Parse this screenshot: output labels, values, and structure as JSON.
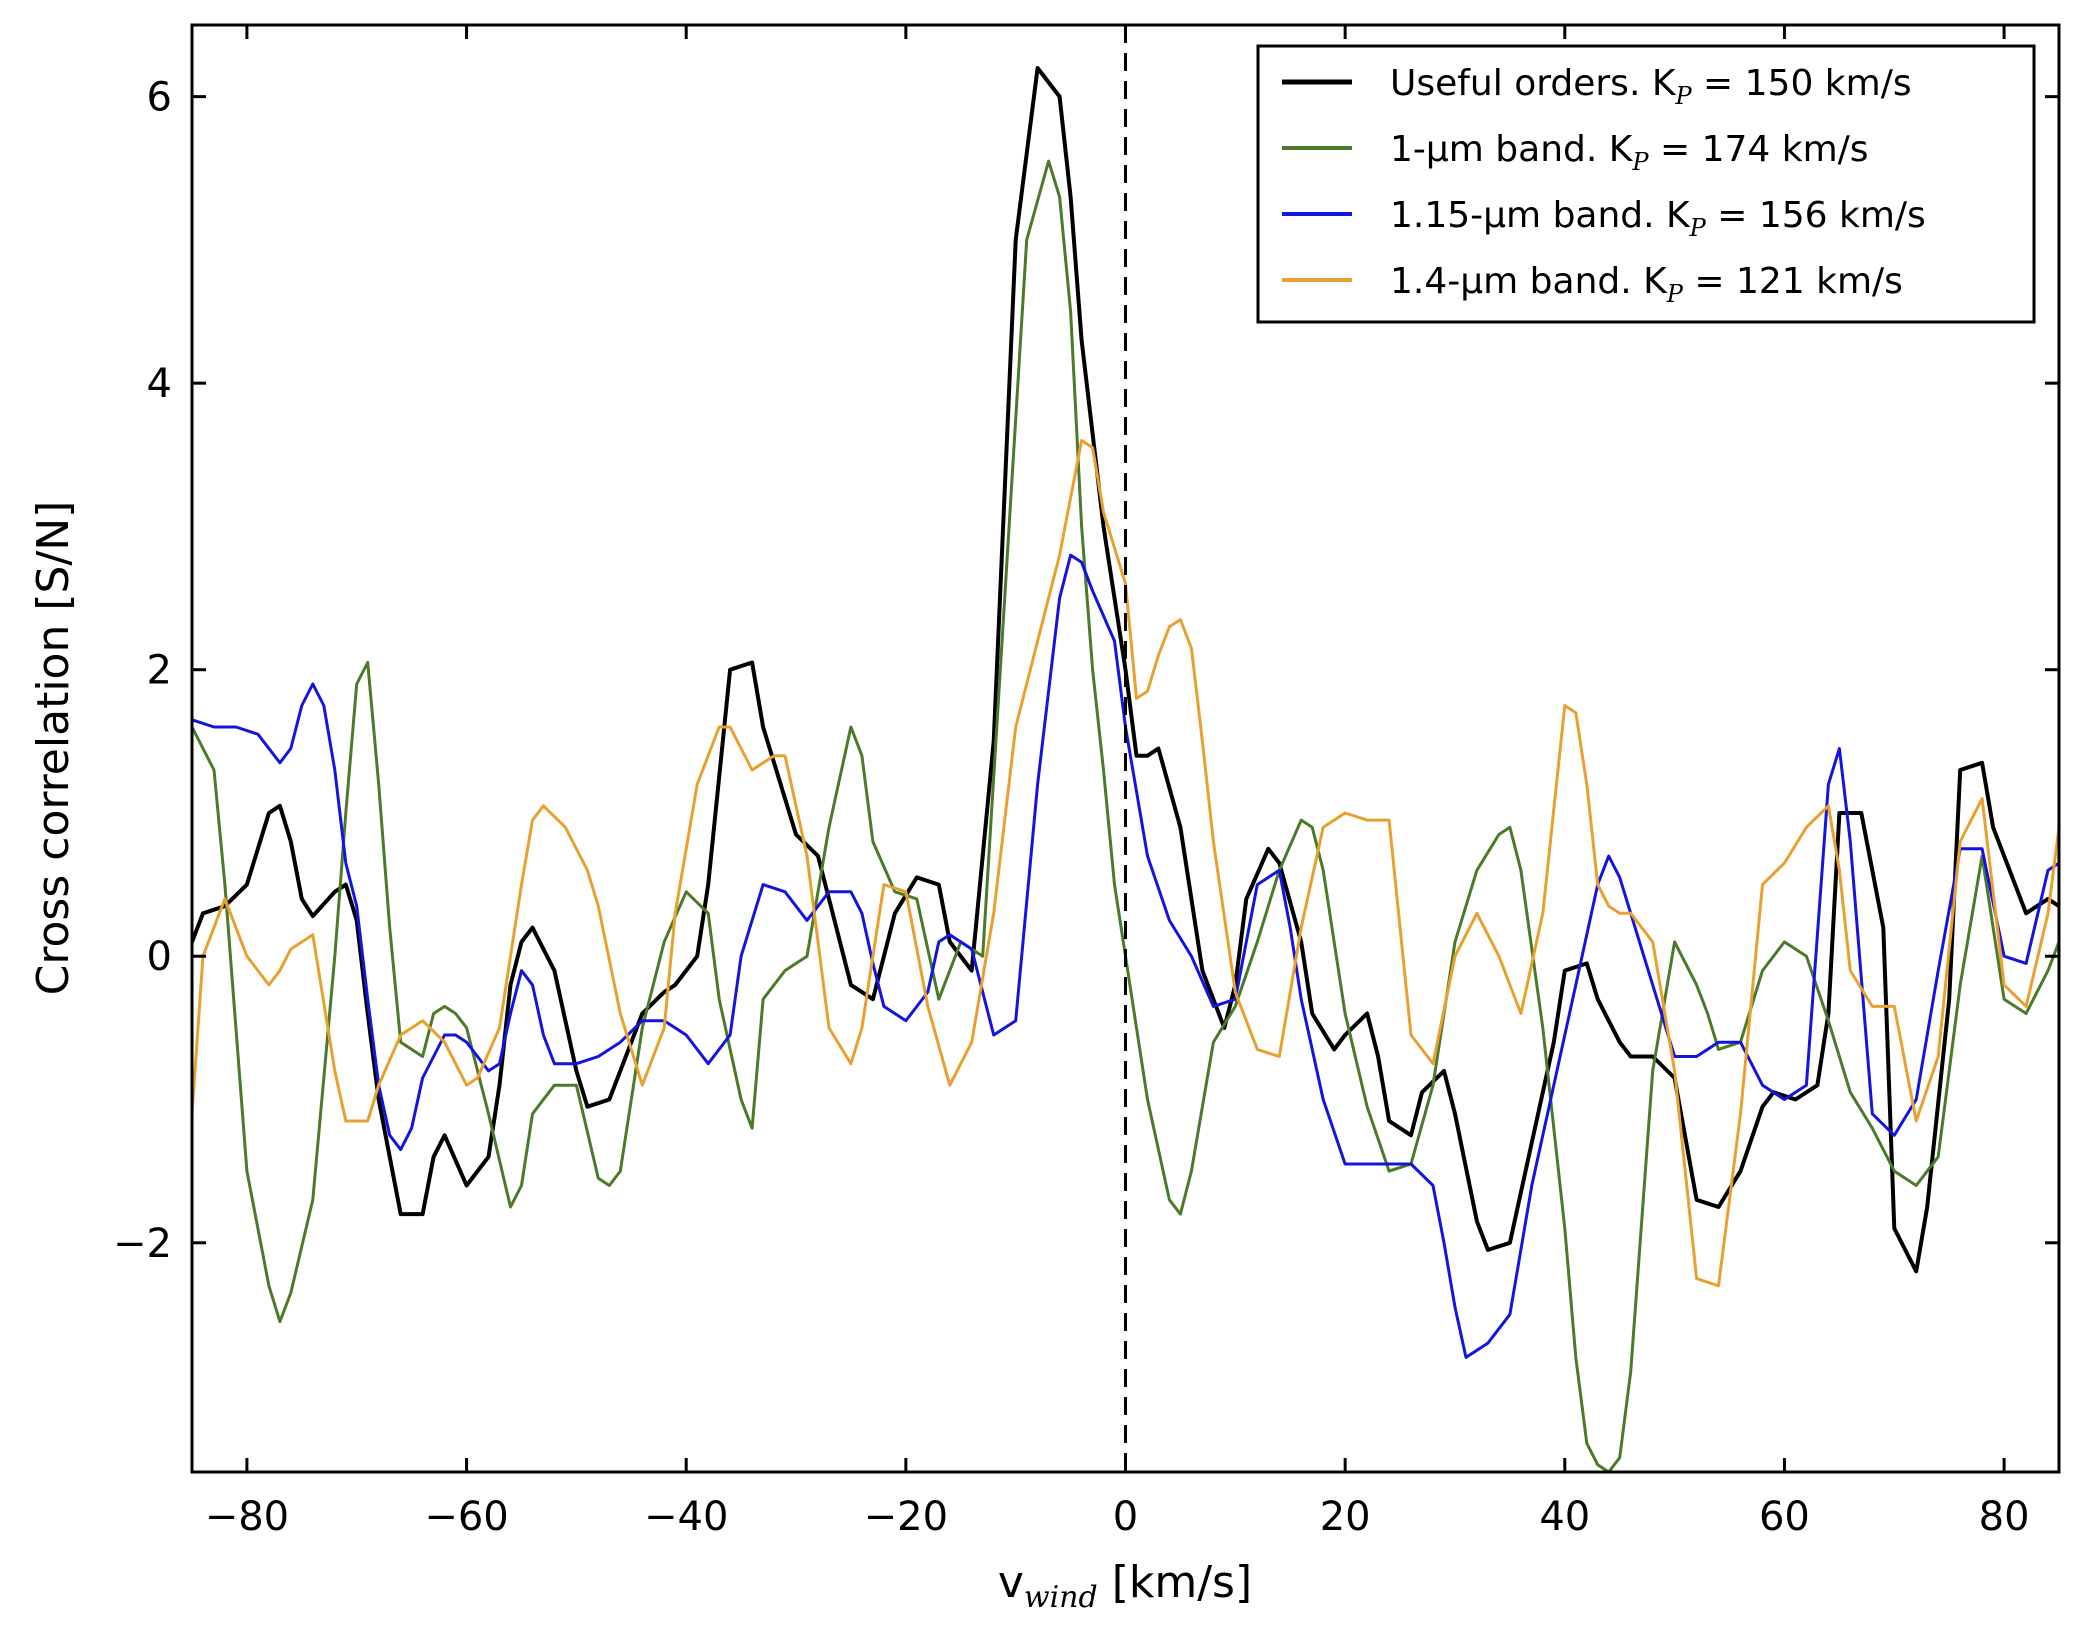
{
  "chart_data": {
    "type": "line",
    "title": "",
    "xlabel": "v",
    "xlabel_sub": "wind",
    "xlabel_unit": " [km/s]",
    "ylabel": "Cross correlation [S/N]",
    "xlim": [
      -85,
      85
    ],
    "ylim": [
      -3.6,
      6.5
    ],
    "xticks": [
      -80,
      -60,
      -40,
      -20,
      0,
      20,
      40,
      60,
      80
    ],
    "xtick_labels": [
      "−80",
      "−60",
      "−40",
      "−20",
      "0",
      "20",
      "40",
      "60",
      "80"
    ],
    "yticks": [
      -2,
      0,
      2,
      4,
      6
    ],
    "ytick_labels": [
      "−2",
      "0",
      "2",
      "4",
      "6"
    ],
    "grid": false,
    "legend_position": "top-right",
    "vline": {
      "x": 0,
      "style": "dashed"
    },
    "series": [
      {
        "name_main": "Useful orders. K",
        "name_sub": "P",
        "name_rest": " = 150 km/s",
        "color": "#000000",
        "width": 4,
        "x": [
          -85,
          -84,
          -82,
          -80,
          -78,
          -77,
          -76,
          -75,
          -74,
          -72,
          -71,
          -70,
          -69,
          -68,
          -66,
          -64,
          -63,
          -62,
          -60,
          -58,
          -57,
          -56,
          -55,
          -54,
          -52,
          -50,
          -49,
          -47,
          -46,
          -44,
          -42,
          -41,
          -39,
          -38,
          -36,
          -34,
          -33,
          -31,
          -30,
          -28,
          -27,
          -25,
          -23,
          -21,
          -19,
          -17,
          -16,
          -14,
          -12,
          -10,
          -8,
          -6,
          -5,
          -4,
          -2,
          0,
          1,
          2,
          3,
          5,
          7,
          9,
          10,
          11,
          13,
          14,
          16,
          17,
          19,
          20,
          22,
          23,
          24,
          26,
          27,
          29,
          30,
          32,
          33,
          35,
          37,
          39,
          40,
          42,
          43,
          45,
          46,
          48,
          50,
          52,
          54,
          56,
          58,
          59,
          61,
          63,
          64,
          65,
          67,
          69,
          70,
          72,
          73,
          75,
          76,
          78,
          79,
          81,
          82,
          83,
          84,
          85
        ],
        "y": [
          0.1,
          0.3,
          0.35,
          0.5,
          1.0,
          1.05,
          0.8,
          0.4,
          0.28,
          0.45,
          0.5,
          0.25,
          -0.4,
          -1.0,
          -1.8,
          -1.8,
          -1.4,
          -1.25,
          -1.6,
          -1.4,
          -0.9,
          -0.2,
          0.1,
          0.2,
          -0.1,
          -0.8,
          -1.05,
          -1.0,
          -0.8,
          -0.4,
          -0.25,
          -0.2,
          0.0,
          0.5,
          2.0,
          2.05,
          1.6,
          1.1,
          0.85,
          0.7,
          0.4,
          -0.2,
          -0.3,
          0.3,
          0.55,
          0.5,
          0.1,
          -0.1,
          1.5,
          5.0,
          6.2,
          6.0,
          5.3,
          4.3,
          3.0,
          2.0,
          1.4,
          1.4,
          1.45,
          0.9,
          -0.1,
          -0.5,
          -0.2,
          0.4,
          0.75,
          0.65,
          0.1,
          -0.4,
          -0.65,
          -0.55,
          -0.4,
          -0.7,
          -1.15,
          -1.25,
          -0.95,
          -0.8,
          -1.1,
          -1.85,
          -2.05,
          -2.0,
          -1.3,
          -0.6,
          -0.1,
          -0.05,
          -0.3,
          -0.6,
          -0.7,
          -0.7,
          -0.85,
          -1.7,
          -1.75,
          -1.5,
          -1.05,
          -0.95,
          -1.0,
          -0.9,
          -0.4,
          1.0,
          1.0,
          0.2,
          -1.9,
          -2.2,
          -1.75,
          -0.3,
          1.3,
          1.35,
          0.9,
          0.5,
          0.3,
          0.35,
          0.4,
          0.35
        ]
      },
      {
        "name_main": "1-μm band. K",
        "name_sub": "P",
        "name_rest": " = 174 km/s",
        "color": "#4a7a2a",
        "width": 3,
        "x": [
          -85,
          -83,
          -82,
          -80,
          -78,
          -77,
          -76,
          -74,
          -72,
          -71,
          -70,
          -69,
          -68,
          -67,
          -66,
          -64,
          -63,
          -62,
          -61,
          -60,
          -58,
          -56,
          -55,
          -54,
          -52,
          -50,
          -48,
          -47,
          -46,
          -44,
          -42,
          -40,
          -38,
          -37,
          -35,
          -34,
          -33,
          -31,
          -29,
          -27,
          -25,
          -24,
          -23,
          -21,
          -19,
          -17,
          -15,
          -13,
          -11,
          -9,
          -7,
          -6,
          -5,
          -4,
          -3,
          -2,
          -1,
          0,
          1,
          2,
          4,
          5,
          6,
          8,
          10,
          12,
          14,
          16,
          17,
          18,
          20,
          22,
          24,
          26,
          28,
          30,
          32,
          34,
          35,
          36,
          38,
          40,
          41,
          42,
          43,
          44,
          45,
          46,
          48,
          50,
          52,
          53,
          54,
          56,
          58,
          60,
          62,
          64,
          66,
          68,
          70,
          72,
          74,
          76,
          78,
          80,
          82,
          84,
          85
        ],
        "y": [
          1.6,
          1.3,
          0.5,
          -1.5,
          -2.3,
          -2.55,
          -2.35,
          -1.7,
          0.0,
          1.0,
          1.9,
          2.05,
          1.2,
          0.2,
          -0.6,
          -0.7,
          -0.4,
          -0.35,
          -0.4,
          -0.5,
          -1.1,
          -1.75,
          -1.6,
          -1.1,
          -0.9,
          -0.9,
          -1.55,
          -1.6,
          -1.5,
          -0.5,
          0.1,
          0.45,
          0.3,
          -0.3,
          -1.0,
          -1.2,
          -0.3,
          -0.1,
          0.0,
          0.9,
          1.6,
          1.4,
          0.8,
          0.45,
          0.4,
          -0.3,
          0.1,
          0.0,
          2.5,
          5.0,
          5.55,
          5.3,
          4.5,
          3.0,
          2.0,
          1.3,
          0.5,
          0.0,
          -0.5,
          -1.0,
          -1.7,
          -1.8,
          -1.5,
          -0.6,
          -0.35,
          0.1,
          0.6,
          0.95,
          0.9,
          0.6,
          -0.4,
          -1.05,
          -1.5,
          -1.45,
          -0.9,
          0.1,
          0.6,
          0.85,
          0.9,
          0.6,
          -0.5,
          -1.9,
          -2.8,
          -3.4,
          -3.55,
          -3.6,
          -3.5,
          -2.9,
          -0.8,
          0.1,
          -0.2,
          -0.4,
          -0.65,
          -0.6,
          -0.1,
          0.1,
          0.0,
          -0.45,
          -0.95,
          -1.2,
          -1.5,
          -1.6,
          -1.4,
          -0.2,
          0.7,
          -0.3,
          -0.4,
          -0.1,
          0.1
        ]
      },
      {
        "name_main": "1.15-μm band. K",
        "name_sub": "P",
        "name_rest": " = 156 km/s",
        "color": "#1414e0",
        "width": 3,
        "x": [
          -85,
          -83,
          -81,
          -79,
          -77,
          -76,
          -75,
          -74,
          -73,
          -72,
          -71,
          -70,
          -69,
          -68,
          -67,
          -66,
          -65,
          -64,
          -63,
          -62,
          -61,
          -60,
          -58,
          -57,
          -56,
          -55,
          -54,
          -53,
          -52,
          -50,
          -48,
          -46,
          -44,
          -42,
          -40,
          -38,
          -36,
          -35,
          -33,
          -31,
          -29,
          -27,
          -25,
          -24,
          -23,
          -22,
          -20,
          -18,
          -17,
          -16,
          -14,
          -12,
          -10,
          -8,
          -6,
          -5,
          -4,
          -3,
          -1,
          0,
          2,
          4,
          6,
          8,
          10,
          12,
          14,
          15,
          16,
          18,
          20,
          22,
          24,
          26,
          28,
          29,
          30,
          31,
          33,
          35,
          37,
          39,
          41,
          43,
          44,
          45,
          46,
          48,
          50,
          52,
          54,
          56,
          58,
          60,
          62,
          64,
          65,
          66,
          68,
          70,
          72,
          74,
          76,
          78,
          80,
          82,
          84,
          85
        ],
        "y": [
          1.65,
          1.6,
          1.6,
          1.55,
          1.35,
          1.45,
          1.75,
          1.9,
          1.75,
          1.3,
          0.65,
          0.35,
          -0.3,
          -0.9,
          -1.25,
          -1.35,
          -1.2,
          -0.85,
          -0.7,
          -0.55,
          -0.55,
          -0.6,
          -0.8,
          -0.75,
          -0.4,
          -0.1,
          -0.2,
          -0.55,
          -0.75,
          -0.75,
          -0.7,
          -0.6,
          -0.45,
          -0.45,
          -0.55,
          -0.75,
          -0.55,
          0.0,
          0.5,
          0.45,
          0.25,
          0.45,
          0.45,
          0.3,
          -0.05,
          -0.35,
          -0.45,
          -0.25,
          0.1,
          0.15,
          0.05,
          -0.55,
          -0.45,
          1.2,
          2.5,
          2.8,
          2.75,
          2.55,
          2.2,
          1.6,
          0.7,
          0.25,
          0.0,
          -0.35,
          -0.3,
          0.5,
          0.6,
          0.2,
          -0.3,
          -1.0,
          -1.45,
          -1.45,
          -1.45,
          -1.45,
          -1.6,
          -2.0,
          -2.45,
          -2.8,
          -2.7,
          -2.5,
          -1.6,
          -0.9,
          -0.2,
          0.5,
          0.7,
          0.55,
          0.3,
          -0.2,
          -0.7,
          -0.7,
          -0.6,
          -0.6,
          -0.9,
          -1.0,
          -0.9,
          1.2,
          1.45,
          0.8,
          -1.1,
          -1.25,
          -1.0,
          -0.1,
          0.75,
          0.75,
          0.0,
          -0.05,
          0.6,
          0.65
        ]
      },
      {
        "name_main": "1.4-μm band. K",
        "name_sub": "P",
        "name_rest": " = 121 km/s",
        "color": "#e8a030",
        "width": 3,
        "x": [
          -85,
          -84,
          -82,
          -80,
          -78,
          -77,
          -76,
          -74,
          -72,
          -71,
          -69,
          -68,
          -66,
          -64,
          -62,
          -60,
          -59,
          -57,
          -56,
          -55,
          -54,
          -53,
          -51,
          -49,
          -48,
          -46,
          -44,
          -42,
          -41,
          -39,
          -37,
          -36,
          -34,
          -32,
          -31,
          -29,
          -27,
          -25,
          -24,
          -23,
          -22,
          -20,
          -18,
          -16,
          -14,
          -12,
          -10,
          -8,
          -6,
          -4,
          -3,
          -2,
          0,
          1,
          2,
          3,
          4,
          5,
          6,
          7,
          8,
          10,
          12,
          14,
          16,
          18,
          20,
          22,
          24,
          26,
          28,
          30,
          32,
          34,
          36,
          38,
          40,
          41,
          42,
          43,
          44,
          45,
          46,
          48,
          50,
          52,
          54,
          56,
          58,
          60,
          62,
          64,
          65,
          66,
          68,
          70,
          72,
          74,
          76,
          78,
          80,
          82,
          84,
          85
        ],
        "y": [
          -1.1,
          0.0,
          0.4,
          0.0,
          -0.2,
          -0.1,
          0.05,
          0.15,
          -0.8,
          -1.15,
          -1.15,
          -0.9,
          -0.55,
          -0.45,
          -0.6,
          -0.9,
          -0.85,
          -0.5,
          0.0,
          0.5,
          0.95,
          1.05,
          0.9,
          0.6,
          0.35,
          -0.4,
          -0.9,
          -0.5,
          0.3,
          1.2,
          1.6,
          1.6,
          1.3,
          1.4,
          1.4,
          0.7,
          -0.5,
          -0.75,
          -0.5,
          0.0,
          0.5,
          0.45,
          -0.35,
          -0.9,
          -0.6,
          0.3,
          1.6,
          2.2,
          2.8,
          3.6,
          3.55,
          3.1,
          2.6,
          1.8,
          1.85,
          2.1,
          2.3,
          2.35,
          2.15,
          1.5,
          0.8,
          -0.25,
          -0.65,
          -0.7,
          0.2,
          0.9,
          1.0,
          0.95,
          0.95,
          -0.55,
          -0.75,
          0.0,
          0.3,
          0.0,
          -0.4,
          0.3,
          1.75,
          1.7,
          1.2,
          0.5,
          0.35,
          0.3,
          0.3,
          0.1,
          -0.8,
          -2.25,
          -2.3,
          -1.1,
          0.5,
          0.65,
          0.9,
          1.05,
          0.6,
          -0.1,
          -0.35,
          -0.35,
          -1.15,
          -0.7,
          0.8,
          1.1,
          -0.2,
          -0.35,
          0.3,
          0.9
        ]
      }
    ]
  }
}
